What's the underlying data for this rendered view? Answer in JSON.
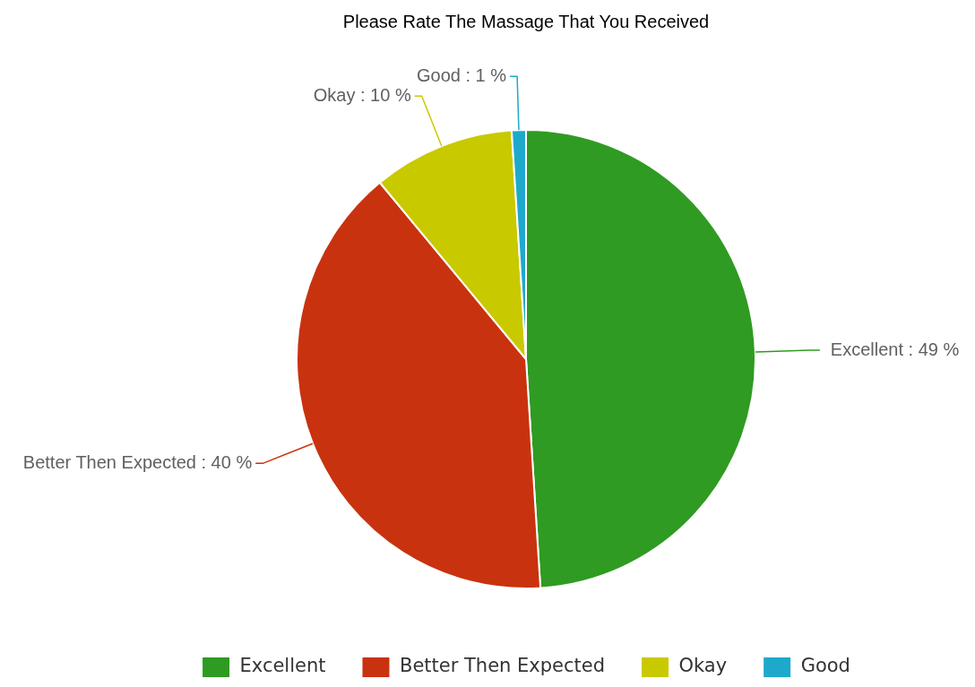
{
  "chart_data": {
    "type": "pie",
    "title": "Please Rate The Massage That You Received",
    "categories": [
      "Excellent",
      "Better Then Expected",
      "Okay",
      "Good"
    ],
    "values": [
      49,
      40,
      10,
      1
    ],
    "colors": [
      "#2f9b22",
      "#c9320f",
      "#c9c900",
      "#1ea9cc"
    ],
    "value_labels": [
      "Excellent : 49 %",
      "Better Then Expected : 40 %",
      "Okay : 10 %",
      "Good : 1 %"
    ],
    "legend": "bottom"
  }
}
